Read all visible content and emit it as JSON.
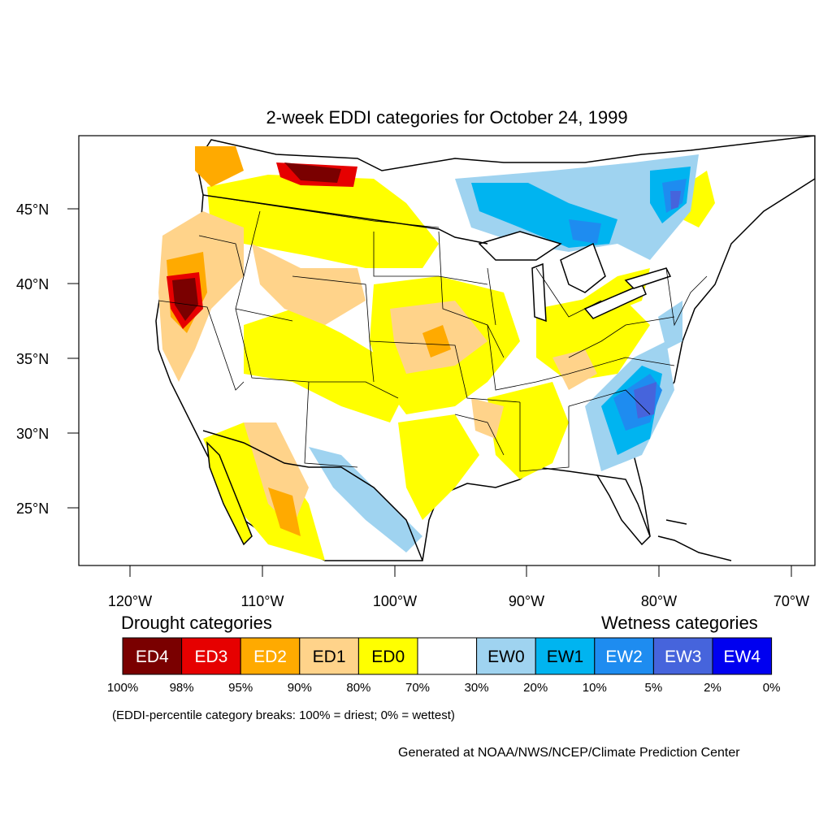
{
  "title": "2-week EDDI categories for October 24, 1999",
  "axes": {
    "lat_labels": [
      "45°N",
      "40°N",
      "35°N",
      "30°N",
      "25°N"
    ],
    "lon_labels": [
      "120°W",
      "110°W",
      "100°W",
      "90°W",
      "80°W",
      "70°W"
    ]
  },
  "legend": {
    "drought_heading": "Drought categories",
    "wetness_heading": "Wetness categories",
    "categories": [
      {
        "label": "ED4",
        "color": "#7a0000",
        "text_color": "#ffffff"
      },
      {
        "label": "ED3",
        "color": "#e60000",
        "text_color": "#ffffff"
      },
      {
        "label": "ED2",
        "color": "#ffaa00",
        "text_color": "#ffffff"
      },
      {
        "label": "ED1",
        "color": "#ffd38a",
        "text_color": "#000000"
      },
      {
        "label": "ED0",
        "color": "#ffff00",
        "text_color": "#000000"
      },
      {
        "label": "",
        "color": "#ffffff",
        "text_color": "#000000"
      },
      {
        "label": "EW0",
        "color": "#9fd3f0",
        "text_color": "#000000"
      },
      {
        "label": "EW1",
        "color": "#00b4f0",
        "text_color": "#000000"
      },
      {
        "label": "EW2",
        "color": "#1e8cf0",
        "text_color": "#ffffff"
      },
      {
        "label": "EW3",
        "color": "#4664dc",
        "text_color": "#ffffff"
      },
      {
        "label": "EW4",
        "color": "#0000f0",
        "text_color": "#ffffff"
      }
    ],
    "breaks": [
      "100%",
      "98%",
      "95%",
      "90%",
      "80%",
      "70%",
      "30%",
      "20%",
      "10%",
      "5%",
      "2%",
      "0%"
    ],
    "note": "(EDDI-percentile category breaks: 100% = driest; 0% = wettest)"
  },
  "credit": "Generated at NOAA/NWS/NCEP/Climate Prediction Center"
}
